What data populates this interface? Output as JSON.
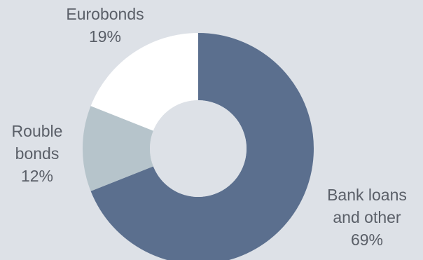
{
  "chart_data": {
    "type": "pie",
    "donut": true,
    "start_angle_deg": 0,
    "direction": "clockwise",
    "background": "#dde1e7",
    "slices": [
      {
        "label_lines": [
          "Bank loans",
          "and other"
        ],
        "value": 69,
        "value_label": "69%",
        "color": "#5b6f8e"
      },
      {
        "label_lines": [
          "Rouble",
          "bonds"
        ],
        "value": 12,
        "value_label": "12%",
        "color": "#b6c4cb"
      },
      {
        "label_lines": [
          "Eurobonds"
        ],
        "value": 19,
        "value_label": "19%",
        "color": "#ffffff"
      }
    ],
    "hole_color": "#dde1e7",
    "label_color": "#5a5f68"
  }
}
